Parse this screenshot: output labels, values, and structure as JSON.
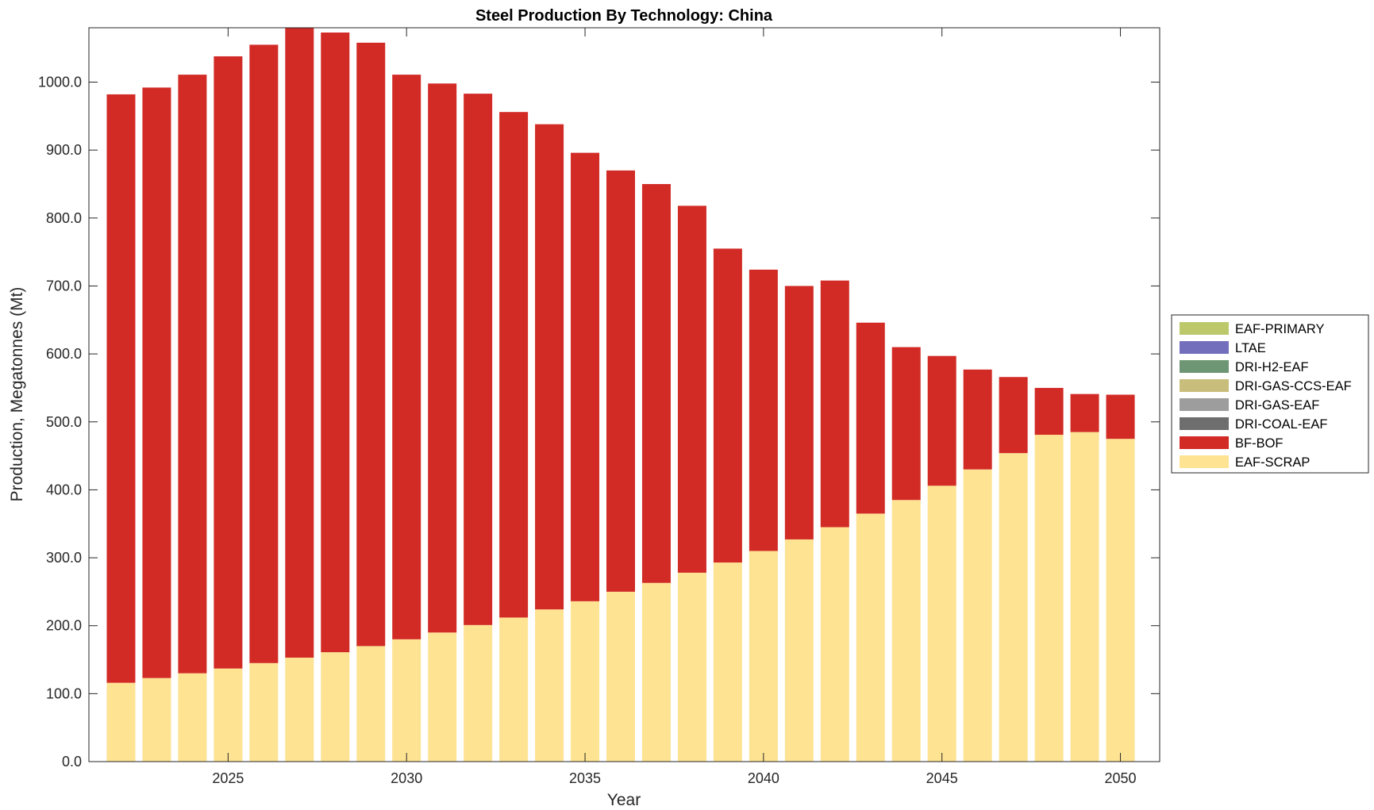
{
  "chart_data": {
    "type": "bar",
    "stacked": true,
    "title": "Steel Production By Technology: China",
    "xlabel": "Year",
    "ylabel": "Production, Megatonnes (Mt)",
    "x": [
      2022,
      2023,
      2024,
      2025,
      2026,
      2027,
      2028,
      2029,
      2030,
      2031,
      2032,
      2033,
      2034,
      2035,
      2036,
      2037,
      2038,
      2039,
      2040,
      2041,
      2042,
      2043,
      2044,
      2045,
      2046,
      2047,
      2048,
      2049,
      2050
    ],
    "xlim": [
      2021.1,
      2051.1
    ],
    "ylim": [
      0,
      1080
    ],
    "xticks": [
      2025,
      2030,
      2035,
      2040,
      2045,
      2050
    ],
    "yticks": [
      0,
      100,
      200,
      300,
      400,
      500,
      600,
      700,
      800,
      900,
      1000
    ],
    "ytick_labels": [
      "0.0",
      "100.0",
      "200.0",
      "300.0",
      "400.0",
      "500.0",
      "600.0",
      "700.0",
      "800.0",
      "900.0",
      "1000.0"
    ],
    "grid": false,
    "legend_position": "outside-right",
    "series": [
      {
        "name": "EAF-SCRAP",
        "color": "#fee393",
        "values": [
          116,
          123,
          130,
          137,
          145,
          153,
          161,
          170,
          180,
          190,
          201,
          212,
          224,
          236,
          250,
          263,
          278,
          293,
          310,
          327,
          345,
          365,
          385,
          406,
          430,
          454,
          481,
          485,
          475
        ]
      },
      {
        "name": "BF-BOF",
        "color": "#d22b26",
        "values": [
          866,
          869,
          881,
          901,
          910,
          927,
          912,
          888,
          831,
          808,
          782,
          744,
          714,
          660,
          620,
          587,
          540,
          462,
          414,
          373,
          363,
          281,
          225,
          191,
          147,
          112,
          69,
          56,
          65
        ]
      },
      {
        "name": "DRI-COAL-EAF",
        "color": "#6e6e6e",
        "values": [
          0,
          0,
          0,
          0,
          0,
          0,
          0,
          0,
          0,
          0,
          0,
          0,
          0,
          0,
          0,
          0,
          0,
          0,
          0,
          0,
          0,
          0,
          0,
          0,
          0,
          0,
          0,
          0,
          0
        ]
      },
      {
        "name": "DRI-GAS-EAF",
        "color": "#9d9d9d",
        "values": [
          0,
          0,
          0,
          0,
          0,
          0,
          0,
          0,
          0,
          0,
          0,
          0,
          0,
          0,
          0,
          0,
          0,
          0,
          0,
          0,
          0,
          0,
          0,
          0,
          0,
          0,
          0,
          0,
          0
        ]
      },
      {
        "name": "DRI-GAS-CCS-EAF",
        "color": "#c9bd7b",
        "values": [
          0,
          0,
          0,
          0,
          0,
          0,
          0,
          0,
          0,
          0,
          0,
          0,
          0,
          0,
          0,
          0,
          0,
          0,
          0,
          0,
          0,
          0,
          0,
          0,
          0,
          0,
          0,
          0,
          0
        ]
      },
      {
        "name": "DRI-H2-EAF",
        "color": "#6e9675",
        "values": [
          0,
          0,
          0,
          0,
          0,
          0,
          0,
          0,
          0,
          0,
          0,
          0,
          0,
          0,
          0,
          0,
          0,
          0,
          0,
          0,
          0,
          0,
          0,
          0,
          0,
          0,
          0,
          0,
          0
        ]
      },
      {
        "name": "LTAE",
        "color": "#746fbd",
        "values": [
          0,
          0,
          0,
          0,
          0,
          0,
          0,
          0,
          0,
          0,
          0,
          0,
          0,
          0,
          0,
          0,
          0,
          0,
          0,
          0,
          0,
          0,
          0,
          0,
          0,
          0,
          0,
          0,
          0
        ]
      },
      {
        "name": "EAF-PRIMARY",
        "color": "#bcc86a",
        "values": [
          0,
          0,
          0,
          0,
          0,
          0,
          0,
          0,
          0,
          0,
          0,
          0,
          0,
          0,
          0,
          0,
          0,
          0,
          0,
          0,
          0,
          0,
          0,
          0,
          0,
          0,
          0,
          0,
          0
        ]
      }
    ],
    "legend_order": [
      "EAF-PRIMARY",
      "LTAE",
      "DRI-H2-EAF",
      "DRI-GAS-CCS-EAF",
      "DRI-GAS-EAF",
      "DRI-COAL-EAF",
      "BF-BOF",
      "EAF-SCRAP"
    ]
  }
}
